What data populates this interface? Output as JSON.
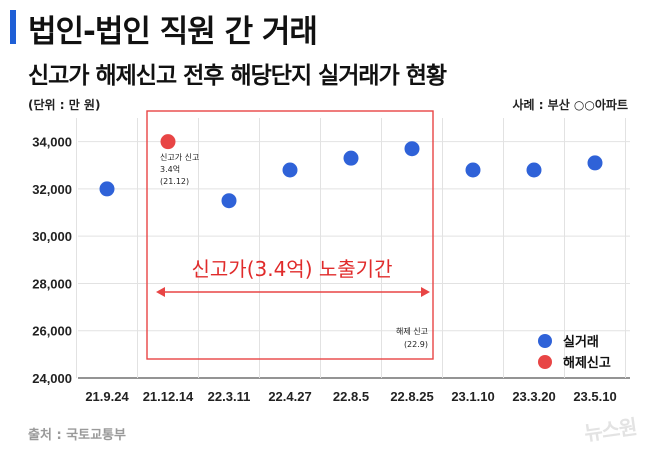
{
  "header": {
    "title": "법인-법인 직원 간 거래",
    "subtitle": "신고가 해제신고 전후 해당단지 실거래가 현황",
    "unit": "(단위 : 만 원)",
    "example": "사례 : 부산 ○○아파트"
  },
  "footer": {
    "source": "출처 : 국토교통부",
    "watermark": "뉴스원"
  },
  "colors": {
    "actual": "#2f62d8",
    "cancel": "#e84545",
    "box": "#e84545",
    "grid": "#e2e2e2",
    "title_bar": "#1f5fd6"
  },
  "chart_data": {
    "type": "scatter",
    "categories": [
      "21.9.24",
      "21.12.14",
      "22.3.11",
      "22.4.27",
      "22.8.5",
      "22.8.25",
      "23.1.10",
      "23.3.20",
      "23.5.10"
    ],
    "ylim": [
      24000,
      35000
    ],
    "yticks": [
      24000,
      26000,
      28000,
      30000,
      32000,
      34000
    ],
    "ytick_labels": [
      "24,000",
      "26,000",
      "28,000",
      "30,000",
      "32,000",
      "34,000"
    ],
    "grid": true,
    "legend_position": "bottom-right",
    "series": [
      {
        "name": "실거래",
        "color": "#2f62d8",
        "points": [
          {
            "x": "21.9.24",
            "y": 32000
          },
          {
            "x": "22.3.11",
            "y": 31500
          },
          {
            "x": "22.4.27",
            "y": 32800
          },
          {
            "x": "22.8.5",
            "y": 33300
          },
          {
            "x": "22.8.25",
            "y": 33700
          },
          {
            "x": "23.1.10",
            "y": 32800
          },
          {
            "x": "23.3.20",
            "y": 32800
          },
          {
            "x": "23.5.10",
            "y": 33100
          }
        ]
      },
      {
        "name": "해제신고",
        "color": "#e84545",
        "points": [
          {
            "x": "21.12.14",
            "y": 34000
          }
        ]
      }
    ],
    "annotations": {
      "record_high": {
        "line1": "신고가 신고",
        "line2": "3.4억",
        "line3": "(21.12)"
      },
      "cancel_report": {
        "line1": "해제 신고",
        "line2": "(22.9)"
      },
      "exposure_period": "신고가(3.4억) 노출기간"
    }
  }
}
